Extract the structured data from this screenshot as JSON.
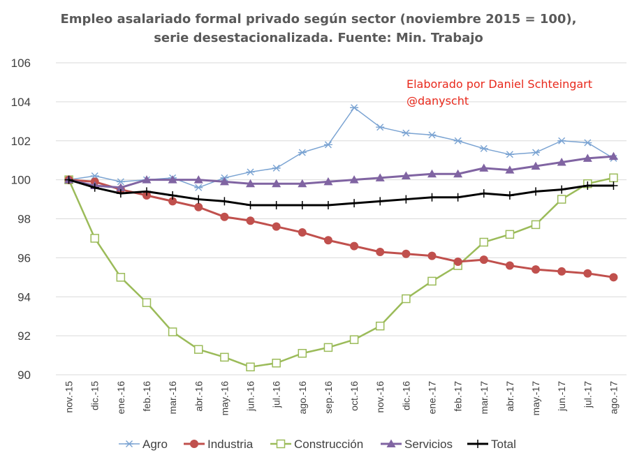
{
  "chart_data": {
    "type": "line",
    "title_lines": [
      "Empleo asalariado formal privado según sector (noviembre 2015 = 100),",
      "serie desestacionalizada. Fuente: Min. Trabajo"
    ],
    "annotation_lines": [
      "Elaborado por Daniel Schteingart",
      "@danyscht"
    ],
    "annotation_color": "#e8291c",
    "categories": [
      "nov.-15",
      "dic.-15",
      "ene.-16",
      "feb.-16",
      "mar.-16",
      "abr.-16",
      "may.-16",
      "jun.-16",
      "jul.-16",
      "ago.-16",
      "sep.-16",
      "oct.-16",
      "nov.-16",
      "dic.-16",
      "ene.-17",
      "feb.-17",
      "mar.-17",
      "abr.-17",
      "may.-17",
      "jun.-17",
      "jul.-17",
      "ago.-17"
    ],
    "ylim": [
      90,
      106
    ],
    "yticks": [
      90,
      92,
      94,
      96,
      98,
      100,
      102,
      104,
      106
    ],
    "xlabel": "",
    "ylabel": "",
    "grid": true,
    "legend_position": "bottom",
    "series": [
      {
        "name": "Agro",
        "marker": "asterisk",
        "color": "#7aa3d2",
        "values": [
          100.0,
          100.2,
          99.9,
          100.0,
          100.1,
          99.6,
          100.1,
          100.4,
          100.6,
          101.4,
          101.8,
          103.7,
          102.7,
          102.4,
          102.3,
          102.0,
          101.6,
          101.3,
          101.4,
          102.0,
          101.9,
          101.1
        ]
      },
      {
        "name": "Industria",
        "marker": "circle",
        "color": "#c0504d",
        "values": [
          100.0,
          99.9,
          99.5,
          99.2,
          98.9,
          98.6,
          98.1,
          97.9,
          97.6,
          97.3,
          96.9,
          96.6,
          96.3,
          96.2,
          96.1,
          95.8,
          95.9,
          95.6,
          95.4,
          95.3,
          95.2,
          95.0
        ]
      },
      {
        "name": "Construcción",
        "marker": "square",
        "color": "#9bbb59",
        "values": [
          100.0,
          97.0,
          95.0,
          93.7,
          92.2,
          91.3,
          90.9,
          90.4,
          90.6,
          91.1,
          91.4,
          91.8,
          92.5,
          93.9,
          94.8,
          95.6,
          96.8,
          97.2,
          97.7,
          99.0,
          99.8,
          100.1
        ]
      },
      {
        "name": "Servicios",
        "marker": "triangle",
        "color": "#8064a2",
        "values": [
          100.0,
          99.7,
          99.6,
          100.0,
          100.0,
          100.0,
          99.9,
          99.8,
          99.8,
          99.8,
          99.9,
          100.0,
          100.1,
          100.2,
          100.3,
          100.3,
          100.6,
          100.5,
          100.7,
          100.9,
          101.1,
          101.2
        ]
      },
      {
        "name": "Total",
        "marker": "plus",
        "color": "#000000",
        "values": [
          100.0,
          99.6,
          99.3,
          99.4,
          99.2,
          99.0,
          98.9,
          98.7,
          98.7,
          98.7,
          98.7,
          98.8,
          98.9,
          99.0,
          99.1,
          99.1,
          99.3,
          99.2,
          99.4,
          99.5,
          99.7,
          99.7
        ]
      }
    ]
  }
}
